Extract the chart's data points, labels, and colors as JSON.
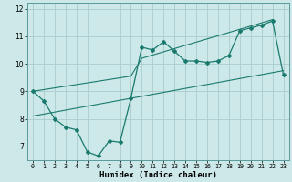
{
  "xlabel": "Humidex (Indice chaleur)",
  "ylabel": "",
  "background_color": "#cce8e8",
  "grid_color": "#b0d8d8",
  "line_color": "#1a7a6e",
  "xlim": [
    -0.5,
    23.5
  ],
  "ylim": [
    6.5,
    12.2
  ],
  "xticks": [
    0,
    1,
    2,
    3,
    4,
    5,
    6,
    7,
    8,
    9,
    10,
    11,
    12,
    13,
    14,
    15,
    16,
    17,
    18,
    19,
    20,
    21,
    22,
    23
  ],
  "yticks": [
    7,
    8,
    9,
    10,
    11,
    12
  ],
  "series1_x": [
    0,
    1,
    2,
    3,
    4,
    5,
    6,
    7,
    8,
    9,
    10,
    11,
    12,
    13,
    14,
    15,
    16,
    17,
    18,
    19,
    20,
    21,
    22,
    23
  ],
  "series1_y": [
    9.0,
    8.65,
    8.0,
    7.7,
    7.6,
    6.8,
    6.65,
    7.2,
    7.15,
    8.75,
    10.6,
    10.5,
    10.8,
    10.45,
    10.1,
    10.1,
    10.05,
    10.1,
    10.3,
    11.2,
    11.3,
    11.4,
    11.55,
    9.6
  ],
  "series2_x": [
    0,
    23
  ],
  "series2_y": [
    8.1,
    9.75
  ],
  "series3_x": [
    0,
    9,
    10,
    22
  ],
  "series3_y": [
    9.0,
    9.55,
    10.2,
    11.6
  ]
}
